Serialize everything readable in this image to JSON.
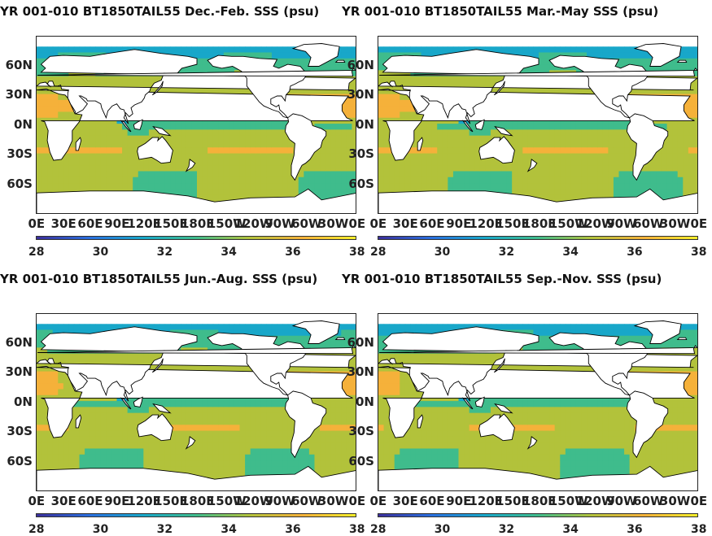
{
  "palette": {
    "stops": [
      "#3b2f9a",
      "#2a6fde",
      "#18a7c9",
      "#3fbc8c",
      "#b2c23b",
      "#f5b13a",
      "#f5ee2a"
    ],
    "land": "#ffffff"
  },
  "chart_data": [
    {
      "type": "heatmap",
      "title": "YR 001-010 BT1850TAIL55 Dec.-Feb. SSS (psu)",
      "season": "Dec.-Feb.",
      "x_tick_labels": [
        "0E",
        "30E",
        "60E",
        "90E",
        "120E",
        "150E",
        "180E",
        "150W",
        "120W",
        "90W",
        "60W",
        "30W",
        "0E"
      ],
      "y_tick_labels": [
        "60N",
        "30N",
        "0N",
        "30S",
        "60S"
      ],
      "colorbar": {
        "ticks": [
          "28",
          "30",
          "32",
          "34",
          "36",
          "38"
        ],
        "range": [
          28,
          38
        ]
      }
    },
    {
      "type": "heatmap",
      "title": "YR 001-010 BT1850TAIL55 Mar.-May SSS (psu)",
      "season": "Mar.-May",
      "x_tick_labels": [
        "0E",
        "30E",
        "60E",
        "90E",
        "120E",
        "150E",
        "180E",
        "150W",
        "120W",
        "90W",
        "60W",
        "30W",
        "0E"
      ],
      "y_tick_labels": [
        "60N",
        "30N",
        "0N",
        "30S",
        "60S"
      ],
      "colorbar": {
        "ticks": [
          "28",
          "30",
          "32",
          "34",
          "36",
          "38"
        ],
        "range": [
          28,
          38
        ]
      }
    },
    {
      "type": "heatmap",
      "title": "YR 001-010 BT1850TAIL55 Jun.-Aug. SSS (psu)",
      "season": "Jun.-Aug.",
      "x_tick_labels": [
        "0E",
        "30E",
        "60E",
        "90E",
        "120E",
        "150E",
        "180E",
        "150W",
        "120W",
        "90W",
        "60W",
        "30W",
        "0E"
      ],
      "y_tick_labels": [
        "60N",
        "30N",
        "0N",
        "30S",
        "60S"
      ],
      "colorbar": {
        "ticks": [
          "28",
          "30",
          "32",
          "34",
          "36",
          "38"
        ],
        "range": [
          28,
          38
        ]
      }
    },
    {
      "type": "heatmap",
      "title": "YR 001-010 BT1850TAIL55 Sep.-Nov. SSS (psu)",
      "season": "Sep.-Nov.",
      "x_tick_labels": [
        "0E",
        "30E",
        "60E",
        "90E",
        "120E",
        "150E",
        "180E",
        "150W",
        "120W",
        "90W",
        "60W",
        "30W",
        "0E"
      ],
      "y_tick_labels": [
        "60N",
        "30N",
        "0N",
        "30S",
        "60S"
      ],
      "colorbar": {
        "ticks": [
          "28",
          "30",
          "32",
          "34",
          "36",
          "38"
        ],
        "range": [
          28,
          38
        ]
      }
    }
  ]
}
